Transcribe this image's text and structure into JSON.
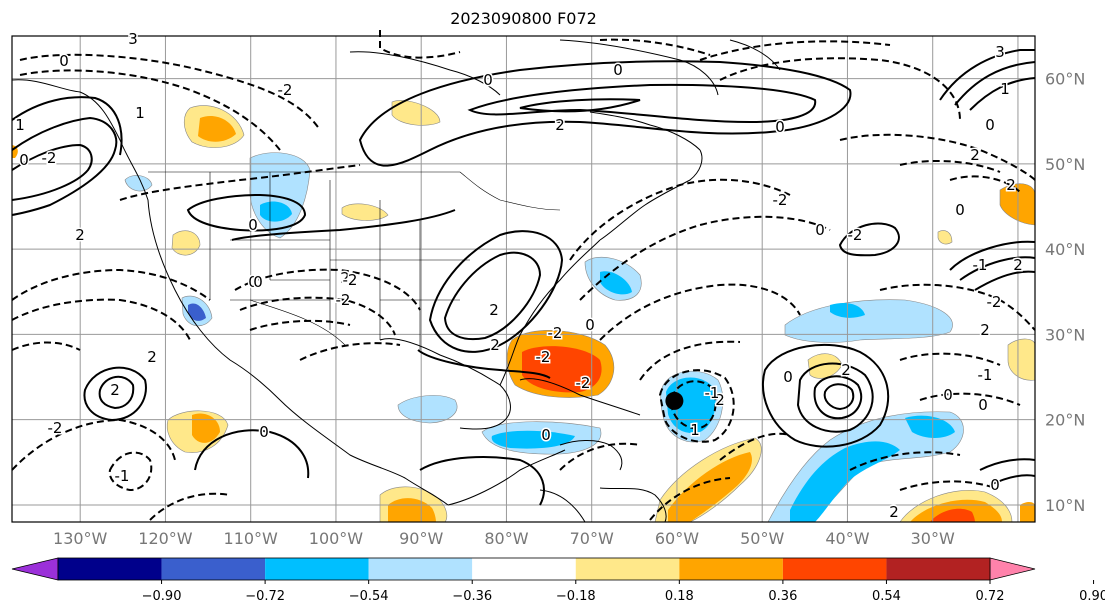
{
  "title": "2023090800 F072",
  "map": {
    "projection": "PlateCarree",
    "lon_range": [
      -138,
      -18
    ],
    "lat_range": [
      8,
      65
    ],
    "grid": true,
    "lat_labels": [
      "60°N",
      "50°N",
      "40°N",
      "30°N",
      "20°N",
      "10°N"
    ],
    "lon_labels": [
      "130°W",
      "120°W",
      "110°W",
      "100°W",
      "90°W",
      "80°W",
      "70°W",
      "60°W",
      "50°W",
      "40°W",
      "30°W"
    ],
    "marker": {
      "name": "storm-center",
      "lon": -60.3,
      "lat": 22.2
    },
    "contour_labels": [
      "3",
      "1",
      "0",
      "2",
      "-2",
      "0",
      "0",
      "2",
      "2",
      "3",
      "0",
      "-2",
      "-2",
      "2",
      "0",
      "2",
      "0",
      "-1",
      "-2",
      "2",
      "-1",
      "0",
      "2",
      "0",
      "-2",
      "2",
      "0",
      "0",
      "-2",
      "-2",
      "1",
      "2",
      "-2",
      "-1",
      "0",
      "2",
      "2",
      "-2",
      "2",
      "0",
      "0",
      "1",
      "-1",
      "0",
      "2",
      "0",
      "0",
      "-2",
      "2",
      "0",
      "-2",
      "1",
      "0"
    ]
  },
  "colorbar": {
    "colors": [
      "#9b30d9",
      "#00008b",
      "#3a5fcd",
      "#00bfff",
      "#b0e2ff",
      "#ffffff",
      "#ffe88a",
      "#ffa500",
      "#ff4500",
      "#b22222",
      "#ff82ab"
    ],
    "ticks": [
      "−0.90",
      "−0.72",
      "−0.54",
      "−0.36",
      "−0.18",
      "0.18",
      "0.36",
      "0.54",
      "0.72",
      "0.90"
    ],
    "extend": "both"
  }
}
